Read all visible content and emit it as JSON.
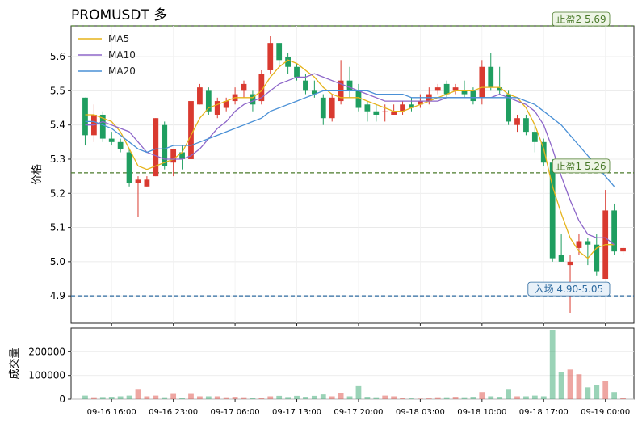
{
  "chart_data": {
    "type": "candlestick",
    "title": "PROMUSDT  多",
    "ylabel": "价格",
    "volume_ylabel": "成交量",
    "ylim": [
      4.82,
      5.69
    ],
    "volume_ylim": [
      0,
      300000
    ],
    "yticks": [
      4.9,
      5.0,
      5.1,
      5.2,
      5.3,
      5.4,
      5.5,
      5.6
    ],
    "volume_yticks": [
      0,
      100000,
      200000
    ],
    "volume_ytick_labels": [
      "0",
      "100000",
      "200000"
    ],
    "x_tick_labels": [
      "09-16 16:00",
      "09-16 23:00",
      "09-17 06:00",
      "09-17 13:00",
      "09-17 20:00",
      "09-18 03:00",
      "09-18 10:00",
      "09-18 17:00",
      "09-19 00:00"
    ],
    "x_tick_index": [
      3,
      10,
      17,
      24,
      31,
      38,
      45,
      52,
      59
    ],
    "colors": {
      "up": "#d93a30",
      "down": "#1f9e60",
      "ma5": "#e6b31a",
      "ma10": "#8d66c9",
      "ma20": "#4a90d6"
    },
    "legend": [
      {
        "key": "ma5",
        "label": "MA5"
      },
      {
        "key": "ma10",
        "label": "MA10"
      },
      {
        "key": "ma20",
        "label": "MA20"
      }
    ],
    "legend_position": "top-left",
    "candles": [
      [
        5.48,
        5.48,
        5.34,
        5.37,
        15000
      ],
      [
        5.37,
        5.46,
        5.35,
        5.43,
        8000
      ],
      [
        5.43,
        5.44,
        5.35,
        5.36,
        9000
      ],
      [
        5.36,
        5.38,
        5.34,
        5.35,
        10000
      ],
      [
        5.35,
        5.36,
        5.32,
        5.33,
        12000
      ],
      [
        5.32,
        5.33,
        5.22,
        5.23,
        15000
      ],
      [
        5.23,
        5.25,
        5.13,
        5.24,
        40000
      ],
      [
        5.22,
        5.25,
        5.22,
        5.24,
        12000
      ],
      [
        5.25,
        5.42,
        5.25,
        5.42,
        15000
      ],
      [
        5.4,
        5.41,
        5.27,
        5.28,
        8000
      ],
      [
        5.29,
        5.33,
        5.25,
        5.33,
        22000
      ],
      [
        5.32,
        5.34,
        5.27,
        5.3,
        5000
      ],
      [
        5.3,
        5.48,
        5.29,
        5.47,
        22000
      ],
      [
        5.46,
        5.52,
        5.46,
        5.51,
        12000
      ],
      [
        5.5,
        5.51,
        5.43,
        5.44,
        12000
      ],
      [
        5.43,
        5.48,
        5.42,
        5.47,
        12000
      ],
      [
        5.45,
        5.48,
        5.44,
        5.47,
        8000
      ],
      [
        5.47,
        5.51,
        5.46,
        5.49,
        10000
      ],
      [
        5.5,
        5.53,
        5.48,
        5.52,
        8000
      ],
      [
        5.49,
        5.5,
        5.44,
        5.46,
        4000
      ],
      [
        5.47,
        5.56,
        5.46,
        5.55,
        6000
      ],
      [
        5.56,
        5.66,
        5.55,
        5.64,
        12000
      ],
      [
        5.64,
        5.64,
        5.57,
        5.59,
        14000
      ],
      [
        5.6,
        5.61,
        5.55,
        5.57,
        9000
      ],
      [
        5.57,
        5.58,
        5.53,
        5.54,
        14000
      ],
      [
        5.53,
        5.55,
        5.49,
        5.5,
        10000
      ],
      [
        5.5,
        5.53,
        5.48,
        5.49,
        14000
      ],
      [
        5.48,
        5.49,
        5.4,
        5.42,
        20000
      ],
      [
        5.42,
        5.49,
        5.41,
        5.48,
        12000
      ],
      [
        5.47,
        5.59,
        5.46,
        5.53,
        25000
      ],
      [
        5.53,
        5.57,
        5.48,
        5.5,
        12000
      ],
      [
        5.5,
        5.52,
        5.44,
        5.45,
        55000
      ],
      [
        5.46,
        5.47,
        5.41,
        5.44,
        10000
      ],
      [
        5.44,
        5.46,
        5.41,
        5.43,
        8000
      ],
      [
        5.44,
        5.46,
        5.41,
        5.44,
        15000
      ],
      [
        5.43,
        5.46,
        5.43,
        5.44,
        12000
      ],
      [
        5.44,
        5.47,
        5.43,
        5.46,
        5000
      ],
      [
        5.46,
        5.48,
        5.44,
        5.45,
        3000
      ],
      [
        5.46,
        5.49,
        5.45,
        5.47,
        2000
      ],
      [
        5.47,
        5.51,
        5.46,
        5.49,
        3000
      ],
      [
        5.5,
        5.52,
        5.49,
        5.51,
        8000
      ],
      [
        5.52,
        5.53,
        5.48,
        5.49,
        8000
      ],
      [
        5.5,
        5.52,
        5.49,
        5.51,
        10000
      ],
      [
        5.5,
        5.53,
        5.48,
        5.49,
        8000
      ],
      [
        5.5,
        5.51,
        5.46,
        5.47,
        10000
      ],
      [
        5.48,
        5.59,
        5.46,
        5.57,
        30000
      ],
      [
        5.57,
        5.61,
        5.5,
        5.51,
        12000
      ],
      [
        5.51,
        5.57,
        5.49,
        5.5,
        10000
      ],
      [
        5.49,
        5.5,
        5.4,
        5.41,
        40000
      ],
      [
        5.4,
        5.43,
        5.38,
        5.42,
        12000
      ],
      [
        5.42,
        5.43,
        5.37,
        5.38,
        12000
      ],
      [
        5.38,
        5.4,
        5.32,
        5.35,
        15000
      ],
      [
        5.35,
        5.36,
        5.28,
        5.29,
        12000
      ],
      [
        5.29,
        5.3,
        5.0,
        5.01,
        290000
      ],
      [
        5.02,
        5.08,
        5.0,
        5.0,
        115000
      ],
      [
        4.99,
        5.02,
        4.85,
        5.0,
        125000
      ],
      [
        5.04,
        5.08,
        5.02,
        5.06,
        105000
      ],
      [
        5.06,
        5.07,
        4.99,
        5.05,
        50000
      ],
      [
        5.05,
        5.08,
        4.96,
        4.97,
        60000
      ],
      [
        4.95,
        5.21,
        4.95,
        5.15,
        75000
      ],
      [
        5.15,
        5.17,
        5.02,
        5.03,
        30000
      ],
      [
        5.03,
        5.05,
        5.02,
        5.04,
        5000
      ]
    ],
    "ma_series": [
      {
        "key": "ma5",
        "values": [
          5.43,
          5.43,
          5.42,
          5.41,
          5.38,
          5.33,
          5.28,
          5.27,
          5.28,
          5.29,
          5.3,
          5.32,
          5.37,
          5.42,
          5.45,
          5.46,
          5.47,
          5.48,
          5.48,
          5.48,
          5.5,
          5.54,
          5.57,
          5.59,
          5.58,
          5.56,
          5.54,
          5.51,
          5.49,
          5.48,
          5.48,
          5.48,
          5.47,
          5.46,
          5.45,
          5.44,
          5.44,
          5.45,
          5.46,
          5.47,
          5.48,
          5.49,
          5.5,
          5.5,
          5.5,
          5.51,
          5.51,
          5.51,
          5.49,
          5.48,
          5.45,
          5.4,
          5.33,
          5.22,
          5.14,
          5.07,
          5.03,
          5.01,
          5.04,
          5.05,
          5.05
        ]
      },
      {
        "key": "ma10",
        "values": [
          5.4,
          5.4,
          5.41,
          5.4,
          5.39,
          5.38,
          5.35,
          5.32,
          5.31,
          5.3,
          5.3,
          5.3,
          5.31,
          5.33,
          5.36,
          5.39,
          5.41,
          5.44,
          5.46,
          5.47,
          5.48,
          5.5,
          5.52,
          5.53,
          5.54,
          5.54,
          5.55,
          5.54,
          5.53,
          5.52,
          5.51,
          5.5,
          5.49,
          5.48,
          5.47,
          5.47,
          5.47,
          5.47,
          5.47,
          5.47,
          5.47,
          5.48,
          5.48,
          5.48,
          5.48,
          5.48,
          5.48,
          5.49,
          5.48,
          5.47,
          5.46,
          5.44,
          5.4,
          5.33,
          5.25,
          5.18,
          5.12,
          5.08,
          5.07,
          5.07,
          5.05
        ]
      },
      {
        "key": "ma20",
        "values": [
          5.41,
          5.41,
          5.4,
          5.39,
          5.37,
          5.35,
          5.33,
          5.32,
          5.33,
          5.33,
          5.34,
          5.34,
          5.34,
          5.35,
          5.36,
          5.37,
          5.38,
          5.39,
          5.4,
          5.41,
          5.42,
          5.44,
          5.45,
          5.46,
          5.47,
          5.48,
          5.49,
          5.5,
          5.5,
          5.5,
          5.5,
          5.5,
          5.5,
          5.49,
          5.49,
          5.49,
          5.49,
          5.48,
          5.48,
          5.48,
          5.48,
          5.48,
          5.48,
          5.48,
          5.48,
          5.48,
          5.48,
          5.48,
          5.48,
          5.48,
          5.47,
          5.46,
          5.44,
          5.42,
          5.4,
          5.37,
          5.34,
          5.31,
          5.28,
          5.25,
          5.22
        ]
      }
    ],
    "annotations": [
      {
        "price": 5.69,
        "label": "止盈2 5.69",
        "line_color": "#4a7a2a",
        "text_color": "#4a7a2a",
        "box_color": "#eef5e6"
      },
      {
        "price": 5.26,
        "label": "止盈1 5.26",
        "line_color": "#4a7a2a",
        "text_color": "#4a7a2a",
        "box_color": "#eef5e6"
      },
      {
        "price": 4.9,
        "label": "入场 4.90-5.05",
        "line_color": "#2d6a9f",
        "text_color": "#2d6a9f",
        "box_color": "#e8f1f9"
      }
    ]
  }
}
